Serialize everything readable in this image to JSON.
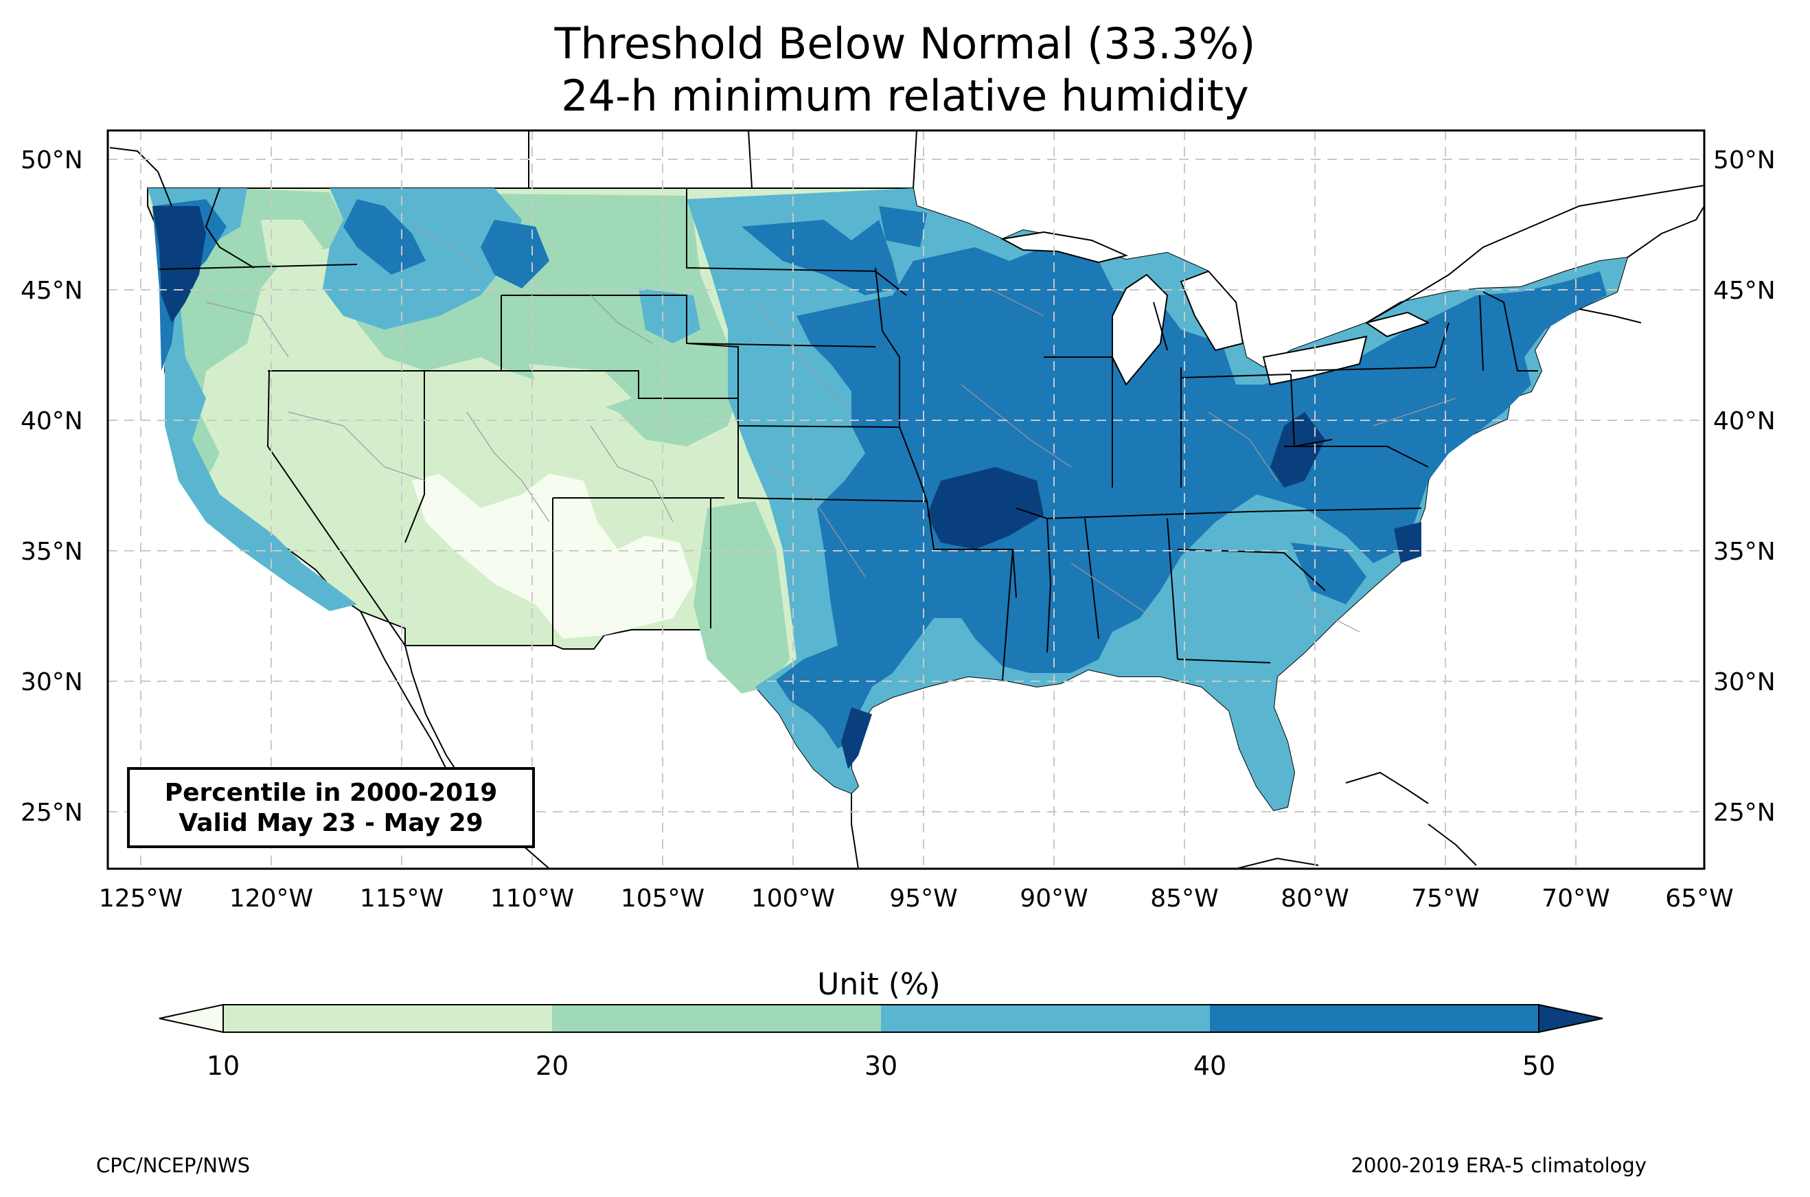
{
  "title_line1": "Threshold Below Normal (33.3%)",
  "title_line2": "24-h minimum relative humidity",
  "info_box": {
    "line1": "Percentile in 2000-2019",
    "line2": "Valid May 23 - May 29"
  },
  "lat_labels": [
    "50°N",
    "45°N",
    "40°N",
    "35°N",
    "30°N",
    "25°N"
  ],
  "lon_labels": [
    "125°W",
    "120°W",
    "115°W",
    "110°W",
    "105°W",
    "100°W",
    "95°W",
    "90°W",
    "85°W",
    "80°W",
    "75°W",
    "70°W",
    "65°W"
  ],
  "colorbar": {
    "title": "Unit (%)",
    "ticks": [
      "10",
      "20",
      "30",
      "40",
      "50"
    ],
    "colors": [
      "#f7fcf0",
      "#d4eecb",
      "#9fd9b8",
      "#5ab6d0",
      "#1d78b6",
      "#0a3f7d"
    ]
  },
  "credit_left": "CPC/NCEP/NWS",
  "credit_right": "2000-2019 ERA-5 climatology"
}
